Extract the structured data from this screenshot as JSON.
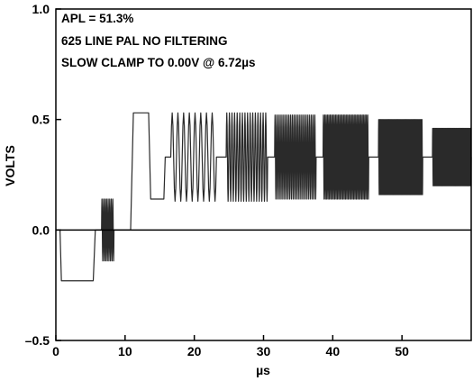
{
  "chart_data": {
    "type": "line",
    "title": "",
    "xlabel": "µs",
    "ylabel": "VOLTS",
    "xlim": [
      0,
      60
    ],
    "ylim": [
      -0.5,
      1.0
    ],
    "x_ticks": [
      0,
      10,
      20,
      30,
      40,
      50
    ],
    "x_tick_labels": [
      "0",
      "10",
      "20",
      "30",
      "40",
      "50"
    ],
    "y_ticks": [
      -0.5,
      0.0,
      0.5,
      1.0
    ],
    "y_tick_labels": [
      "–0.5",
      "0.0",
      "0.5",
      "1.0"
    ],
    "reference_line_y": 0.0,
    "grid": false,
    "annotations": [
      "APL = 51.3%",
      "625 LINE PAL NO FILTERING",
      "SLOW CLAMP TO 0.00V @ 6.72µs"
    ],
    "colors": {
      "trace": "#2a2a2a",
      "axis": "#000000"
    },
    "series": [
      {
        "segments": [
          {
            "kind": "level",
            "x_start": 0.0,
            "x_end": 0.6,
            "y": 0.0
          },
          {
            "kind": "level",
            "x_start": 0.8,
            "x_end": 5.4,
            "y": -0.23
          },
          {
            "kind": "level",
            "x_start": 5.7,
            "x_end": 6.6,
            "y": 0.0
          },
          {
            "kind": "burst",
            "x_start": 6.6,
            "x_end": 8.4,
            "center": 0.0,
            "amplitude": 0.14,
            "cycles": 8
          },
          {
            "kind": "level",
            "x_start": 8.4,
            "x_end": 10.8,
            "y": 0.0
          },
          {
            "kind": "level",
            "x_start": 11.2,
            "x_end": 13.4,
            "y": 0.53
          },
          {
            "kind": "level",
            "x_start": 13.7,
            "x_end": 15.6,
            "y": 0.14
          },
          {
            "kind": "level",
            "x_start": 15.8,
            "x_end": 16.6,
            "y": 0.33
          },
          {
            "kind": "burst",
            "x_start": 16.6,
            "x_end": 23.2,
            "center": 0.33,
            "amplitude": 0.2,
            "cycles": 8
          },
          {
            "kind": "level",
            "x_start": 23.2,
            "x_end": 24.6,
            "y": 0.33
          },
          {
            "kind": "burst",
            "x_start": 24.6,
            "x_end": 30.6,
            "center": 0.33,
            "amplitude": 0.2,
            "cycles": 16
          },
          {
            "kind": "level",
            "x_start": 30.6,
            "x_end": 31.6,
            "y": 0.33
          },
          {
            "kind": "burst",
            "x_start": 31.6,
            "x_end": 37.6,
            "center": 0.33,
            "amplitude": 0.19,
            "cycles": 24
          },
          {
            "kind": "level",
            "x_start": 37.6,
            "x_end": 38.6,
            "y": 0.33
          },
          {
            "kind": "burst",
            "x_start": 38.6,
            "x_end": 45.2,
            "center": 0.33,
            "amplitude": 0.19,
            "cycles": 34
          },
          {
            "kind": "level",
            "x_start": 45.2,
            "x_end": 46.6,
            "y": 0.33
          },
          {
            "kind": "burst",
            "x_start": 46.6,
            "x_end": 53.0,
            "center": 0.33,
            "amplitude": 0.17,
            "cycles": 44
          },
          {
            "kind": "level",
            "x_start": 53.0,
            "x_end": 54.4,
            "y": 0.33
          },
          {
            "kind": "burst",
            "x_start": 54.4,
            "x_end": 60.0,
            "center": 0.33,
            "amplitude": 0.13,
            "cycles": 40
          }
        ]
      }
    ]
  }
}
